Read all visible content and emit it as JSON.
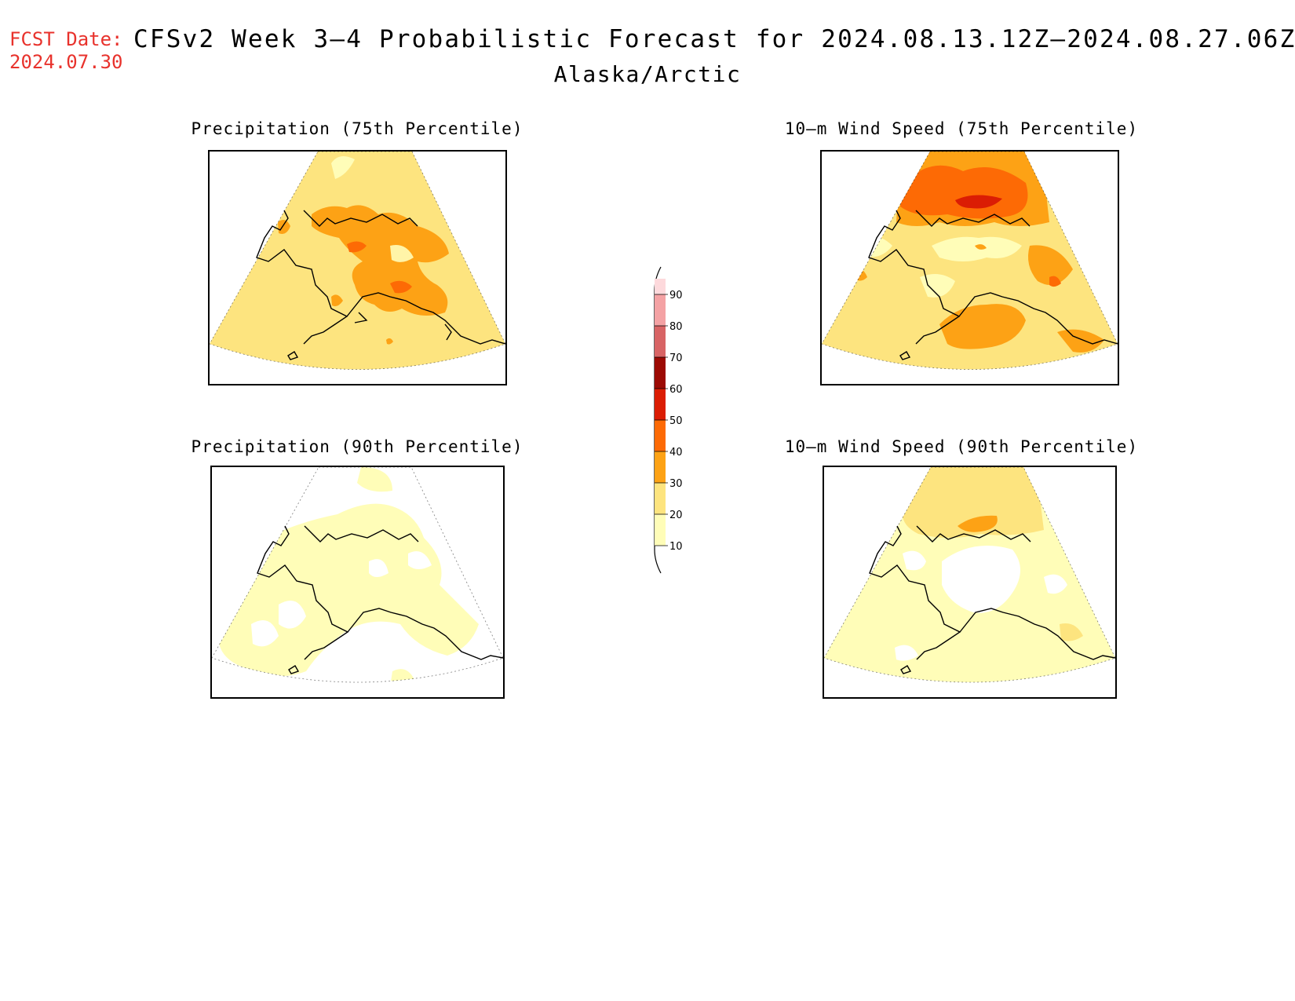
{
  "header": {
    "fcst_label": "FCST Date:",
    "fcst_date": "2024.07.30",
    "title": "CFSv2 Week 3–4 Probabilistic Forecast for 2024.08.13.12Z–2024.08.27.06Z",
    "region": "Alaska/Arctic"
  },
  "panels": [
    {
      "id": "precip75",
      "title": "Precipitation (75th Percentile)"
    },
    {
      "id": "wind75",
      "title": "10–m Wind Speed (75th Percentile)"
    },
    {
      "id": "precip90",
      "title": "Precipitation (90th Percentile)"
    },
    {
      "id": "wind90",
      "title": "10–m Wind Speed (90th Percentile)"
    }
  ],
  "legend": {
    "labels": [
      "90",
      "80",
      "70",
      "60",
      "50",
      "40",
      "30",
      "20",
      "10"
    ],
    "colors": {
      "10": "#fffdb8",
      "20": "#fde47f",
      "30": "#fda215",
      "40": "#fd6a05",
      "50": "#db1d04",
      "60": "#9c0a04",
      "70": "#d86465",
      "80": "#f4a2a4",
      "90": "#fdd9dc"
    }
  },
  "colors": {
    "fcst_text": "#e8322c",
    "outline": "#000000"
  }
}
